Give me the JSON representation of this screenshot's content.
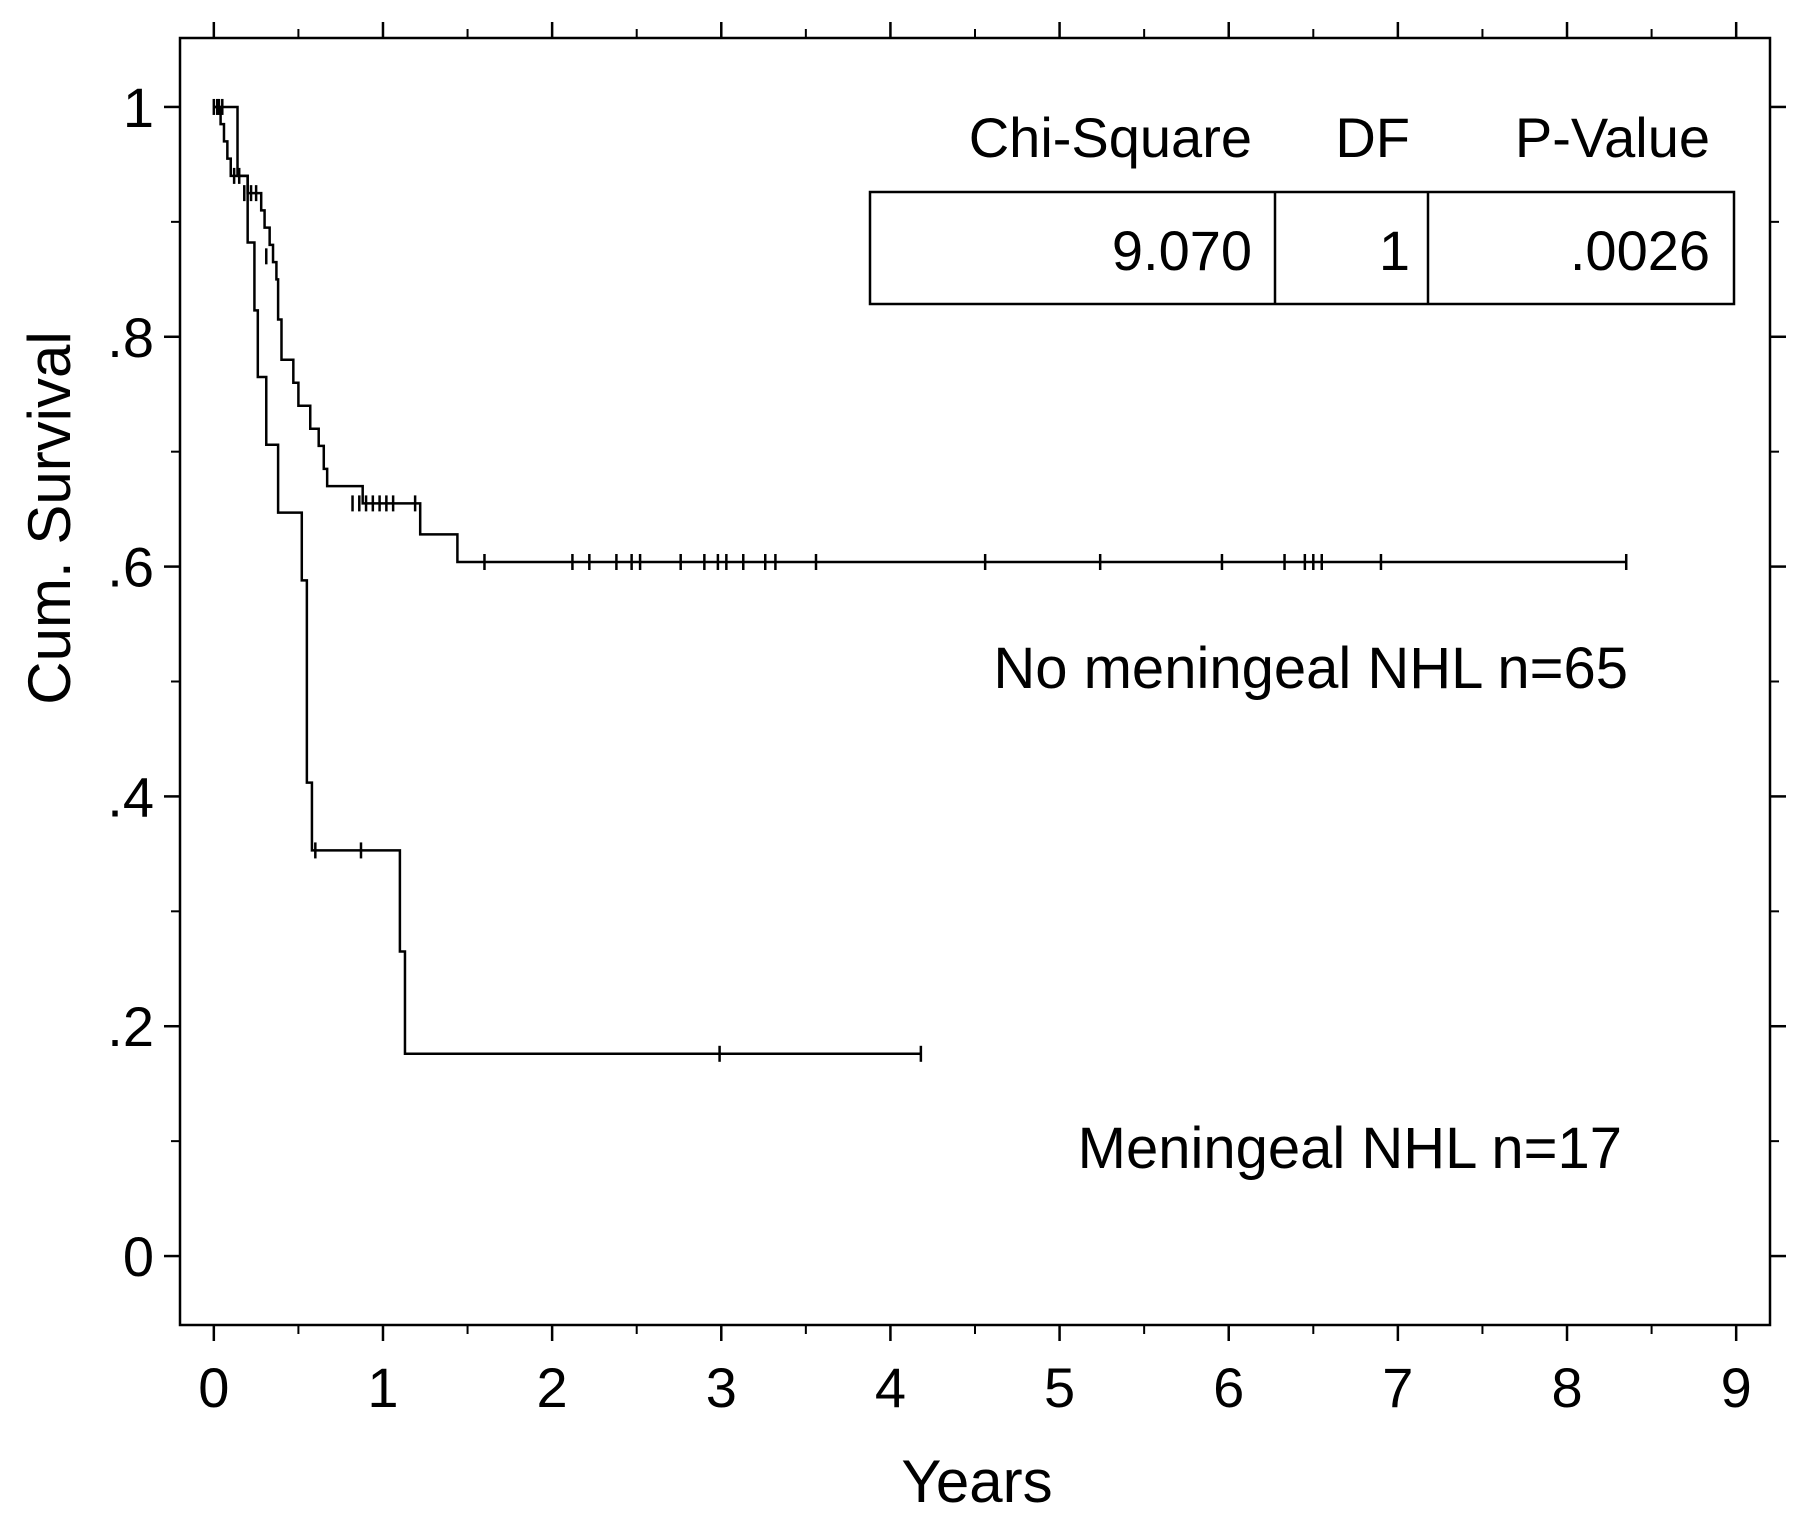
{
  "chart_data": {
    "type": "line",
    "title": "",
    "xlabel": "Years",
    "ylabel": "Cum. Survival",
    "xlim": [
      -0.2,
      9.2
    ],
    "ylim": [
      -0.06,
      1.06
    ],
    "xticks": [
      {
        "value": 0,
        "label": "0"
      },
      {
        "value": 1,
        "label": "1"
      },
      {
        "value": 2,
        "label": "2"
      },
      {
        "value": 3,
        "label": "3"
      },
      {
        "value": 4,
        "label": "4"
      },
      {
        "value": 5,
        "label": "5"
      },
      {
        "value": 6,
        "label": "6"
      },
      {
        "value": 7,
        "label": "7"
      },
      {
        "value": 8,
        "label": "8"
      },
      {
        "value": 9,
        "label": "9"
      }
    ],
    "yticks": [
      {
        "value": 0,
        "label": "0"
      },
      {
        "value": 0.2,
        "label": ".2"
      },
      {
        "value": 0.4,
        "label": ".4"
      },
      {
        "value": 0.6,
        "label": ".6"
      },
      {
        "value": 0.8,
        "label": ".8"
      },
      {
        "value": 1,
        "label": "1"
      }
    ],
    "grid": false,
    "stats_table": {
      "headers": [
        "Chi-Square",
        "DF",
        "P-Value"
      ],
      "values": [
        "9.070",
        "1",
        ".0026"
      ]
    },
    "series": [
      {
        "name": "No meningeal NHL n=65",
        "color": "#000000",
        "steps": [
          [
            0,
            1.0
          ],
          [
            0.04,
            0.985
          ],
          [
            0.06,
            0.97
          ],
          [
            0.08,
            0.955
          ],
          [
            0.1,
            0.94
          ],
          [
            0.2,
            0.925
          ],
          [
            0.28,
            0.91
          ],
          [
            0.3,
            0.895
          ],
          [
            0.33,
            0.88
          ],
          [
            0.35,
            0.865
          ],
          [
            0.37,
            0.85
          ],
          [
            0.38,
            0.815
          ],
          [
            0.4,
            0.78
          ],
          [
            0.47,
            0.76
          ],
          [
            0.5,
            0.74
          ],
          [
            0.57,
            0.72
          ],
          [
            0.62,
            0.705
          ],
          [
            0.65,
            0.685
          ],
          [
            0.67,
            0.67
          ],
          [
            0.88,
            0.655
          ],
          [
            1.22,
            0.628
          ],
          [
            1.44,
            0.604
          ],
          [
            8.35,
            0.604
          ]
        ],
        "censored": [
          [
            0.0,
            1.0
          ],
          [
            0.03,
            1.0
          ],
          [
            0.12,
            0.94
          ],
          [
            0.15,
            0.94
          ],
          [
            0.18,
            0.925
          ],
          [
            0.22,
            0.925
          ],
          [
            0.25,
            0.925
          ],
          [
            0.31,
            0.87
          ],
          [
            0.82,
            0.655
          ],
          [
            0.86,
            0.655
          ],
          [
            0.9,
            0.655
          ],
          [
            0.94,
            0.655
          ],
          [
            0.98,
            0.655
          ],
          [
            1.02,
            0.655
          ],
          [
            1.06,
            0.655
          ],
          [
            1.19,
            0.655
          ],
          [
            1.6,
            0.604
          ],
          [
            2.12,
            0.604
          ],
          [
            2.22,
            0.604
          ],
          [
            2.38,
            0.604
          ],
          [
            2.47,
            0.604
          ],
          [
            2.52,
            0.604
          ],
          [
            2.76,
            0.604
          ],
          [
            2.9,
            0.604
          ],
          [
            2.98,
            0.604
          ],
          [
            3.03,
            0.604
          ],
          [
            3.13,
            0.604
          ],
          [
            3.26,
            0.604
          ],
          [
            3.32,
            0.604
          ],
          [
            3.56,
            0.604
          ],
          [
            4.56,
            0.604
          ],
          [
            5.24,
            0.604
          ],
          [
            5.96,
            0.604
          ],
          [
            6.33,
            0.604
          ],
          [
            6.45,
            0.604
          ],
          [
            6.5,
            0.604
          ],
          [
            6.55,
            0.604
          ],
          [
            6.9,
            0.604
          ],
          [
            8.35,
            0.604
          ]
        ]
      },
      {
        "name": "Meningeal NHL n=17",
        "color": "#000000",
        "steps": [
          [
            0,
            1.0
          ],
          [
            0.14,
            0.94
          ],
          [
            0.2,
            0.882
          ],
          [
            0.24,
            0.823
          ],
          [
            0.26,
            0.765
          ],
          [
            0.31,
            0.706
          ],
          [
            0.38,
            0.647
          ],
          [
            0.52,
            0.588
          ],
          [
            0.55,
            0.412
          ],
          [
            0.58,
            0.353
          ],
          [
            1.1,
            0.265
          ],
          [
            1.13,
            0.176
          ],
          [
            4.18,
            0.176
          ]
        ],
        "censored": [
          [
            0.02,
            1.0
          ],
          [
            0.05,
            1.0
          ],
          [
            0.6,
            0.353
          ],
          [
            0.87,
            0.353
          ],
          [
            2.99,
            0.176
          ],
          [
            4.18,
            0.176
          ]
        ]
      }
    ]
  }
}
